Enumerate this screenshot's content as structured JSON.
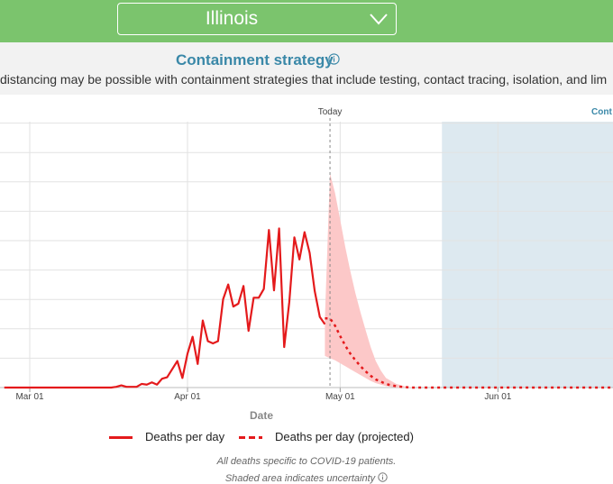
{
  "header": {
    "state_select": {
      "value": "Illinois"
    }
  },
  "strategy": {
    "title": "Containment strategy",
    "description": "distancing may be possible with containment strategies that include testing, contact tracing, isolation, and lim"
  },
  "colors": {
    "actual": "#e41a1c",
    "band": "#fcc8c8",
    "containment_region": "#dde9f0",
    "accent": "#3a88a8",
    "header_bg": "#7bc46d"
  },
  "chart_data": {
    "type": "line",
    "xlabel": "Date",
    "ylabel": "",
    "x_ticks": [
      "Mar 01",
      "Apr 01",
      "May 01",
      "Jun 01"
    ],
    "today_label": "Today",
    "today": "2020-04-29",
    "containment_label": "Cont",
    "containment_start": "2020-05-21",
    "grid": true,
    "y_unlabeled_gridline_count": 9,
    "series": [
      {
        "name": "Deaths per day",
        "style": "solid",
        "points": [
          [
            "2020-02-25",
            0
          ],
          [
            "2020-03-17",
            0
          ],
          [
            "2020-03-18",
            0.1
          ],
          [
            "2020-03-19",
            0.3
          ],
          [
            "2020-03-20",
            0.1
          ],
          [
            "2020-03-21",
            0.1
          ],
          [
            "2020-03-22",
            0.1
          ],
          [
            "2020-03-23",
            0.5
          ],
          [
            "2020-03-24",
            0.4
          ],
          [
            "2020-03-25",
            0.7
          ],
          [
            "2020-03-26",
            0.4
          ],
          [
            "2020-03-27",
            1.2
          ],
          [
            "2020-03-28",
            1.4
          ],
          [
            "2020-03-29",
            2.5
          ],
          [
            "2020-03-30",
            3.6
          ],
          [
            "2020-03-31",
            1.3
          ],
          [
            "2020-04-01",
            4.6
          ],
          [
            "2020-04-02",
            6.9
          ],
          [
            "2020-04-03",
            3.2
          ],
          [
            "2020-04-04",
            9.1
          ],
          [
            "2020-04-05",
            6.3
          ],
          [
            "2020-04-06",
            6.0
          ],
          [
            "2020-04-07",
            6.3
          ],
          [
            "2020-04-08",
            12.0
          ],
          [
            "2020-04-09",
            14.0
          ],
          [
            "2020-04-10",
            11.0
          ],
          [
            "2020-04-11",
            11.4
          ],
          [
            "2020-04-12",
            13.8
          ],
          [
            "2020-04-13",
            7.7
          ],
          [
            "2020-04-14",
            12.2
          ],
          [
            "2020-04-15",
            12.2
          ],
          [
            "2020-04-16",
            13.4
          ],
          [
            "2020-04-17",
            21.4
          ],
          [
            "2020-04-18",
            13.2
          ],
          [
            "2020-04-19",
            21.6
          ],
          [
            "2020-04-20",
            5.5
          ],
          [
            "2020-04-21",
            11.6
          ],
          [
            "2020-04-22",
            20.4
          ],
          [
            "2020-04-23",
            17.4
          ],
          [
            "2020-04-24",
            21.1
          ],
          [
            "2020-04-25",
            18.3
          ],
          [
            "2020-04-26",
            13.1
          ],
          [
            "2020-04-27",
            9.6
          ],
          [
            "2020-04-28",
            8.6
          ]
        ]
      },
      {
        "name": "Deaths per day (projected)",
        "style": "dashed",
        "points": [
          [
            "2020-04-28",
            9.4
          ],
          [
            "2020-04-29",
            9.4
          ],
          [
            "2020-04-30",
            8.4
          ],
          [
            "2020-05-01",
            7.0
          ],
          [
            "2020-05-02",
            5.7
          ],
          [
            "2020-05-03",
            4.6
          ],
          [
            "2020-05-04",
            3.7
          ],
          [
            "2020-05-05",
            2.9
          ],
          [
            "2020-05-06",
            2.2
          ],
          [
            "2020-05-07",
            1.6
          ],
          [
            "2020-05-08",
            1.1
          ],
          [
            "2020-05-09",
            0.8
          ],
          [
            "2020-05-10",
            0.5
          ],
          [
            "2020-05-11",
            0.3
          ],
          [
            "2020-05-13",
            0.1
          ],
          [
            "2020-05-15",
            0
          ],
          [
            "2020-06-30",
            0
          ]
        ]
      }
    ],
    "uncertainty_band": [
      [
        "2020-04-28",
        9.4,
        4.3
      ],
      [
        "2020-04-29",
        29.1,
        4.0
      ],
      [
        "2020-04-30",
        26.4,
        3.7
      ],
      [
        "2020-05-01",
        22.8,
        3.3
      ],
      [
        "2020-05-02",
        19.1,
        2.9
      ],
      [
        "2020-05-03",
        15.8,
        2.5
      ],
      [
        "2020-05-04",
        12.8,
        2.1
      ],
      [
        "2020-05-05",
        10.2,
        1.7
      ],
      [
        "2020-05-06",
        7.8,
        1.3
      ],
      [
        "2020-05-07",
        5.5,
        0.9
      ],
      [
        "2020-05-08",
        3.6,
        0.6
      ],
      [
        "2020-05-09",
        2.3,
        0.4
      ],
      [
        "2020-05-10",
        1.3,
        0.2
      ],
      [
        "2020-05-12",
        0.5,
        0
      ],
      [
        "2020-05-14",
        0.1,
        0
      ],
      [
        "2020-05-16",
        0,
        0
      ]
    ]
  },
  "legend": {
    "actual_label": "Deaths per day",
    "projected_label": "Deaths per day (projected)"
  },
  "notes": {
    "line1": "All deaths specific to COVID-19 patients.",
    "line2": "Shaded area indicates uncertainty"
  }
}
